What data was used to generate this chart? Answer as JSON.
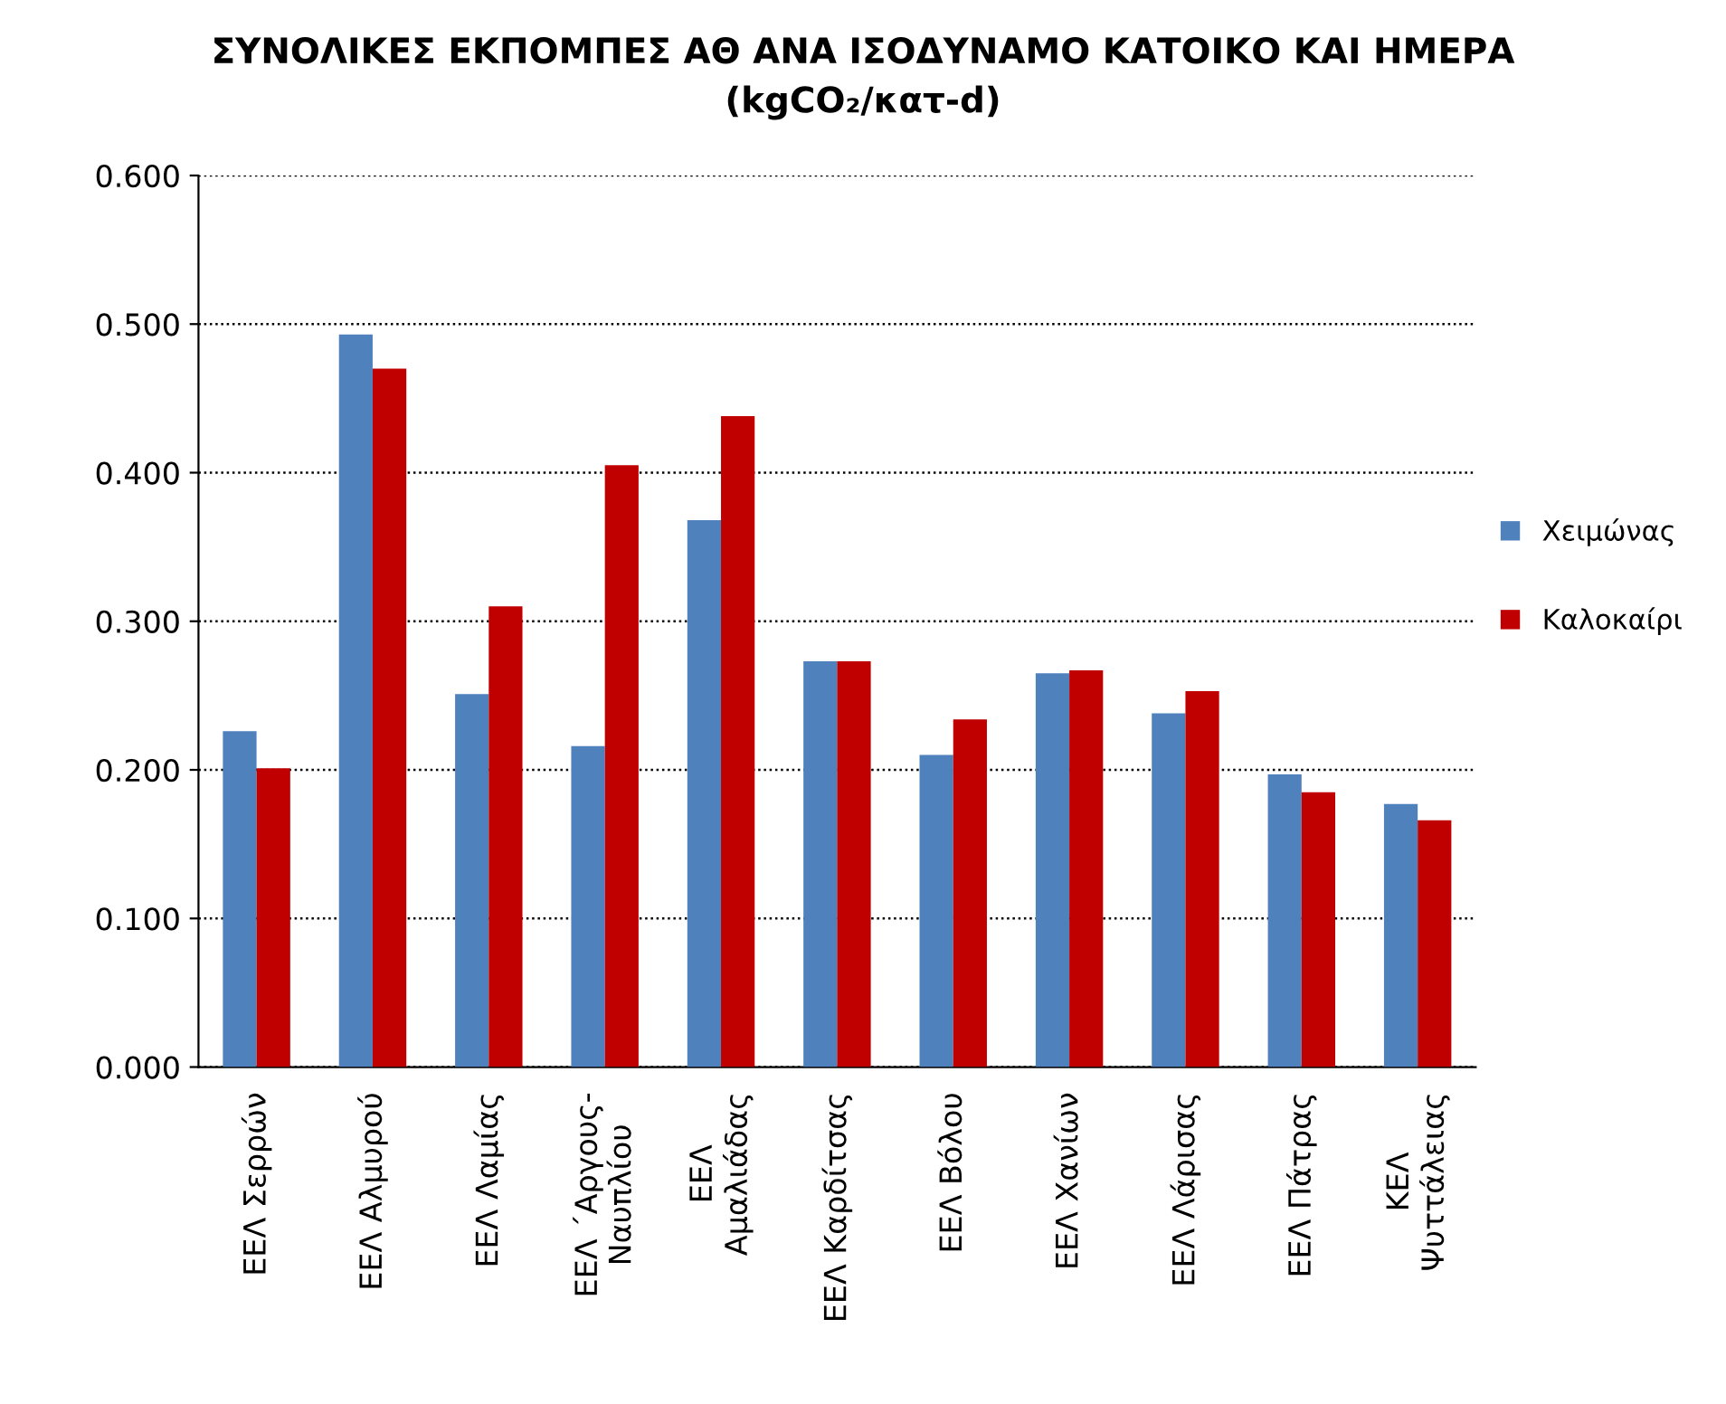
{
  "chart_data": {
    "type": "bar",
    "title": "ΣΥΝΟΛΙΚΕΣ ΕΚΠΟΜΠΕΣ ΑΘ ΑΝΑ ΙΣΟΔΥΝΑΜΟ ΚΑΤΟΙΚΟ ΚΑΙ ΗΜΕΡΑ",
    "subtitle": "(kgCO₂/κατ-d)",
    "categories": [
      "ΕΕΛ Σερρών",
      "ΕΕΛ Αλμυρού",
      "ΕΕΛ Λαμίας",
      "ΕΕΛ ΄Αργους-\nΝαυπλίου",
      "ΕΕΛ\nΑμαλιάδας",
      "ΕΕΛ Καρδίτσας",
      "ΕΕΛ Βόλου",
      "ΕΕΛ Χανίων",
      "ΕΕΛ Λάρισας",
      "ΕΕΛ Πάτρας",
      "ΚΕΛ\nΨυττάλειας"
    ],
    "series": [
      {
        "name": "Χειμώνας",
        "color": "#4f81bd",
        "values": [
          0.226,
          0.493,
          0.251,
          0.216,
          0.368,
          0.273,
          0.21,
          0.265,
          0.238,
          0.197,
          0.177
        ]
      },
      {
        "name": "Καλοκαίρι",
        "color": "#c00000",
        "values": [
          0.201,
          0.47,
          0.31,
          0.405,
          0.438,
          0.273,
          0.234,
          0.267,
          0.253,
          0.185,
          0.166
        ]
      }
    ],
    "ylim": [
      0,
      0.6
    ],
    "yticks": [
      {
        "value": 0,
        "label": "0.000"
      },
      {
        "value": 0.1,
        "label": "0.100"
      },
      {
        "value": 0.2,
        "label": "0.200"
      },
      {
        "value": 0.3,
        "label": "0.300"
      },
      {
        "value": 0.4,
        "label": "0.400"
      },
      {
        "value": 0.5,
        "label": "0.500"
      },
      {
        "value": 0.6,
        "label": "0.600"
      }
    ],
    "grid": "y",
    "legend": "right"
  }
}
